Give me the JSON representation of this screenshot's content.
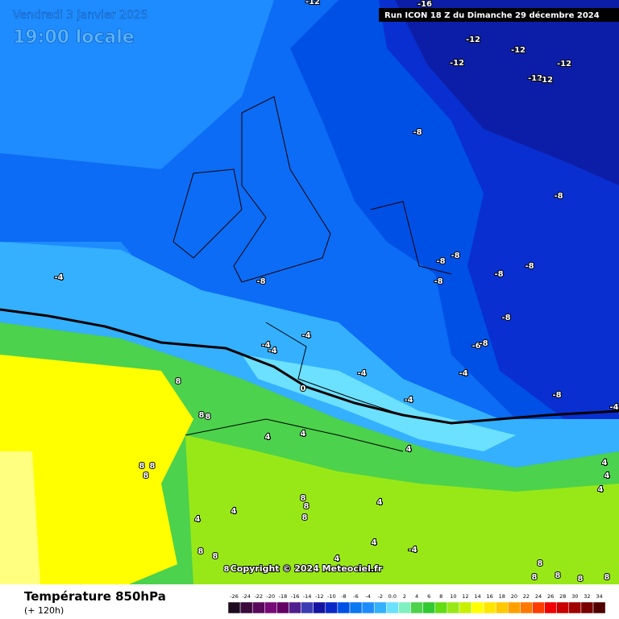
{
  "header": {
    "date": "Vendredi 3 janvier 2025",
    "time": "19:00 locale",
    "run": "Run ICON 18 Z du Dimanche 29 décembre 2024"
  },
  "map": {
    "labels": [
      "-12",
      "-16",
      "-12",
      "-12",
      "-12",
      "-12",
      "-12",
      "-12",
      "-8",
      "-8",
      "-8",
      "-8",
      "-8",
      "-8",
      "-8",
      "-8",
      "-4",
      "-8",
      "-4",
      "-4",
      "-4",
      "-6",
      "-8",
      "-4",
      "-4",
      "0",
      "-4",
      "-8",
      "-4",
      "8",
      "8",
      "8",
      "4",
      "4",
      "4",
      "8",
      "8",
      "8",
      "4",
      "4",
      "4",
      "8",
      "8",
      "8",
      "4",
      "4",
      "4",
      "8",
      "8",
      "4",
      "4",
      "-4",
      "8",
      "8",
      "8",
      "8",
      "8",
      "8"
    ],
    "copyright": "Copyright © 2024 Meteociel.fr"
  },
  "legend": {
    "title": "Température 850hPa",
    "subtitle": "(+ 120h)",
    "ticks": [
      "-26",
      "-24",
      "-22",
      "-20",
      "-18",
      "-16",
      "-14",
      "-12",
      "-10",
      "-8",
      "-6",
      "-4",
      "-2",
      "0.0",
      "2",
      "4",
      "6",
      "8",
      "10",
      "12",
      "14",
      "16",
      "18",
      "20",
      "22",
      "24",
      "26",
      "28",
      "30",
      "32",
      "34"
    ],
    "colors": [
      "#1e0a1e",
      "#3c0a3c",
      "#5a0a5a",
      "#780a78",
      "#640064",
      "#50208c",
      "#3c3cb4",
      "#1414a0",
      "#0a28c8",
      "#0050e6",
      "#0a78f0",
      "#1e8cff",
      "#34b0ff",
      "#6ce0ff",
      "#80f0c0",
      "#4cd24c",
      "#32c832",
      "#64dc14",
      "#98e818",
      "#c8f000",
      "#ffff00",
      "#ffe600",
      "#ffc800",
      "#ffa000",
      "#ff7800",
      "#ff3c00",
      "#f00000",
      "#c80000",
      "#a00000",
      "#780000",
      "#500000"
    ]
  }
}
